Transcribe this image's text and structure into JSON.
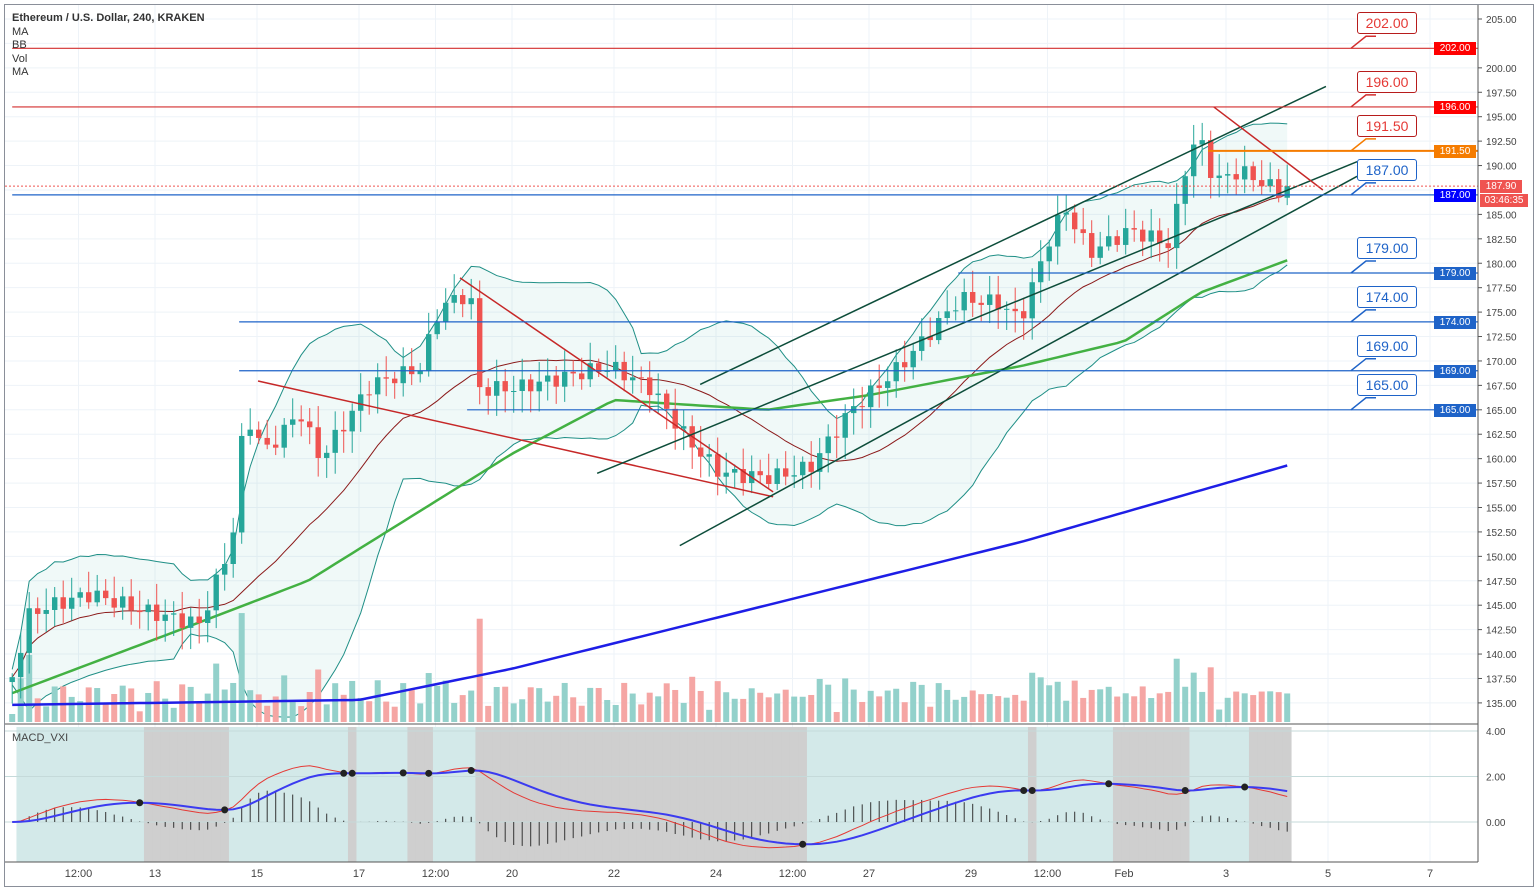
{
  "legend": {
    "title": "Ethereum / U.S. Dollar, 240, KRAKEN",
    "items": [
      "MA",
      "BB",
      "Vol",
      "MA"
    ]
  },
  "macd_label": "MACD_VXI",
  "countdown": "03:46:35",
  "colors": {
    "up": "#26a69a",
    "down": "#ef5350",
    "ma_green": "#43b143",
    "ma_blue": "#1e1ee6",
    "bb": "#1f8f86",
    "red_level": "#d32f2f",
    "blue_level": "#1e63c8",
    "orange": "#f57c00"
  },
  "levels": [
    {
      "label": "202.00",
      "value": 202,
      "color": "red",
      "start_day": 10.2
    },
    {
      "label": "196.00",
      "value": 196,
      "color": "red",
      "start_day": 10.2
    },
    {
      "label": "191.50",
      "value": 191.5,
      "color": "orange",
      "start_day": 33.65
    },
    {
      "label": "187.00",
      "value": 187,
      "color": "blue",
      "start_day": 10.2
    },
    {
      "label": "179.00",
      "value": 179,
      "color": "blue",
      "start_day": 28.75
    },
    {
      "label": "174.00",
      "value": 174,
      "color": "blue",
      "start_day": 14.65
    },
    {
      "label": "169.00",
      "value": 169,
      "color": "blue",
      "start_day": 14.65
    },
    {
      "label": "165.00",
      "value": 165,
      "color": "blue",
      "start_day": 19.12
    }
  ],
  "current_price": {
    "label": "187.90",
    "value": 187.9
  },
  "chart_data": {
    "type": "candlestick",
    "title": "Ethereum / U.S. Dollar, 240, KRAKEN",
    "ylim": [
      133,
      206
    ],
    "y_ticks": [
      "135.00",
      "137.50",
      "140.00",
      "142.50",
      "145.00",
      "147.50",
      "150.00",
      "152.50",
      "155.00",
      "157.50",
      "160.00",
      "162.50",
      "165.00",
      "167.50",
      "170.00",
      "172.50",
      "175.00",
      "177.50",
      "180.00",
      "182.50",
      "185.00",
      "190.00",
      "192.50",
      "195.00",
      "197.50",
      "200.00",
      "205.00"
    ],
    "x_ticks": [
      {
        "label": "12:00",
        "day": 11.5
      },
      {
        "label": "13",
        "day": 13
      },
      {
        "label": "15",
        "day": 15
      },
      {
        "label": "17",
        "day": 17
      },
      {
        "label": "12:00",
        "day": 18.5
      },
      {
        "label": "20",
        "day": 20
      },
      {
        "label": "22",
        "day": 22
      },
      {
        "label": "24",
        "day": 24
      },
      {
        "label": "12:00",
        "day": 25.5
      },
      {
        "label": "27",
        "day": 27
      },
      {
        "label": "29",
        "day": 29
      },
      {
        "label": "12:00",
        "day": 30.5
      },
      {
        "label": "Feb",
        "day": 32
      },
      {
        "label": "3",
        "day": 34
      },
      {
        "label": "5",
        "day": 36
      },
      {
        "label": "7",
        "day": 38
      }
    ],
    "close_anchors": [
      [
        10.2,
        136.3
      ],
      [
        10.55,
        143
      ],
      [
        11.73,
        145.5
      ],
      [
        12.9,
        144.5
      ],
      [
        13.88,
        144
      ],
      [
        14.51,
        152.7
      ],
      [
        14.76,
        166
      ],
      [
        15.16,
        162
      ],
      [
        15.84,
        166
      ],
      [
        16.24,
        161
      ],
      [
        17.22,
        168
      ],
      [
        18.2,
        169
      ],
      [
        18.59,
        175
      ],
      [
        19.18,
        176
      ],
      [
        19.37,
        166
      ],
      [
        20.16,
        166
      ],
      [
        20.94,
        167
      ],
      [
        21.92,
        168.6
      ],
      [
        22.71,
        167
      ],
      [
        23.49,
        162
      ],
      [
        24.08,
        159.3
      ],
      [
        25.06,
        159.3
      ],
      [
        25.84,
        160.4
      ],
      [
        26.63,
        166
      ],
      [
        27.61,
        170
      ],
      [
        28.78,
        176
      ],
      [
        29.57,
        175
      ],
      [
        29.96,
        173
      ],
      [
        30.55,
        181.4
      ],
      [
        30.84,
        184.4
      ],
      [
        31.33,
        179.8
      ],
      [
        32.12,
        182.4
      ],
      [
        32.9,
        181.4
      ],
      [
        33.29,
        191.6
      ],
      [
        33.49,
        192.6
      ],
      [
        33.78,
        188.5
      ],
      [
        34.27,
        190
      ],
      [
        34.76,
        189
      ],
      [
        35.2,
        187.9
      ]
    ],
    "ma_green": [
      [
        10.2,
        136
      ],
      [
        13.5,
        142.5
      ],
      [
        16,
        147.5
      ],
      [
        20,
        160.5
      ],
      [
        22,
        166
      ],
      [
        25,
        165
      ],
      [
        27,
        166.5
      ],
      [
        30,
        169.5
      ],
      [
        32,
        172
      ],
      [
        33.5,
        177
      ],
      [
        35.2,
        180.3
      ]
    ],
    "ma_blue": [
      [
        10.2,
        134.8
      ],
      [
        17,
        135.3
      ],
      [
        20,
        138.5
      ],
      [
        25,
        145
      ],
      [
        30,
        151.5
      ],
      [
        35.2,
        159.3
      ]
    ],
    "trendlines": [
      {
        "color": "red",
        "from": [
          15.02,
          167.95
        ],
        "to": [
          25.12,
          156.1
        ]
      },
      {
        "color": "red",
        "from": [
          18.98,
          178.5
        ],
        "to": [
          25.12,
          156.6
        ]
      },
      {
        "color": "green",
        "from": [
          21.67,
          158.5
        ],
        "to": [
          36.57,
          190.4
        ]
      },
      {
        "color": "green",
        "from": [
          23.29,
          151.1
        ],
        "to": [
          36.57,
          188.9
        ]
      },
      {
        "color": "green",
        "from": [
          23.69,
          167.6
        ],
        "to": [
          35.96,
          198.1
        ]
      },
      {
        "color": "red",
        "from": [
          33.76,
          196
        ],
        "to": [
          35.9,
          187.5
        ]
      }
    ],
    "macd_ticks": [
      "4.00",
      "2.00",
      "0.00"
    ],
    "macd_ylim": [
      -1.7,
      4.3
    ]
  }
}
